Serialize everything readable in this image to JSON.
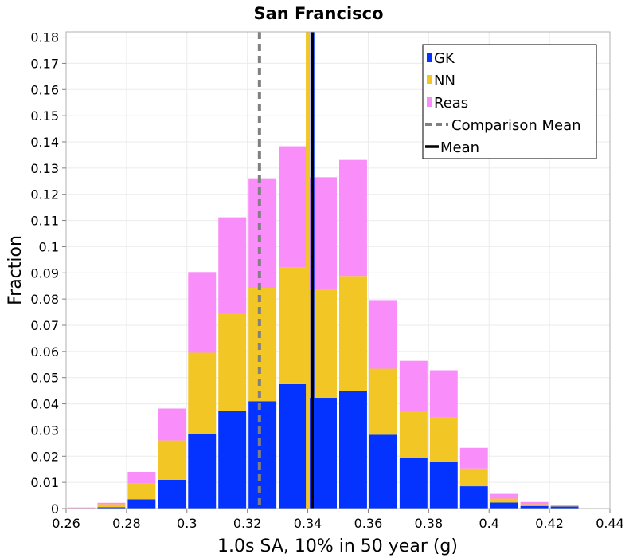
{
  "chart_data": {
    "type": "bar",
    "stacked": true,
    "title": "San Francisco",
    "xlabel": "1.0s SA, 10% in 50 year (g)",
    "ylabel": "Fraction",
    "xlim": [
      0.26,
      0.44
    ],
    "ylim": [
      0,
      0.182
    ],
    "grid": true,
    "legend_position": "top-right",
    "bin_width": 0.01,
    "x_ticks": [
      "0.26",
      "0.28",
      "0.3",
      "0.32",
      "0.34",
      "0.36",
      "0.38",
      "0.4",
      "0.42",
      "0.44"
    ],
    "y_ticks": [
      "0",
      "0.01",
      "0.02",
      "0.03",
      "0.04",
      "0.05",
      "0.06",
      "0.07",
      "0.08",
      "0.09",
      "0.1",
      "0.11",
      "0.12",
      "0.13",
      "0.14",
      "0.15",
      "0.16",
      "0.17",
      "0.18"
    ],
    "bin_starts": [
      0.26,
      0.27,
      0.28,
      0.29,
      0.3,
      0.31,
      0.32,
      0.33,
      0.34,
      0.35,
      0.36,
      0.37,
      0.38,
      0.39,
      0.4,
      0.41,
      0.42
    ],
    "series": [
      {
        "name": "GK",
        "color": "#0433ff",
        "values": [
          0.0001,
          0.0005,
          0.0035,
          0.011,
          0.0285,
          0.0373,
          0.041,
          0.0475,
          0.0423,
          0.045,
          0.0282,
          0.0192,
          0.0178,
          0.0085,
          0.0023,
          0.001,
          0.0008
        ]
      },
      {
        "name": "NN",
        "color": "#f2c624",
        "values": [
          0.0001,
          0.0012,
          0.006,
          0.015,
          0.031,
          0.0371,
          0.0433,
          0.0447,
          0.0417,
          0.0438,
          0.0252,
          0.018,
          0.0172,
          0.0068,
          0.0015,
          0.0007,
          0.0002
        ]
      },
      {
        "name": "Reas",
        "color": "#f98df9",
        "values": [
          0.0002,
          0.0005,
          0.0045,
          0.0122,
          0.0308,
          0.0368,
          0.0418,
          0.0461,
          0.0425,
          0.0443,
          0.0262,
          0.0192,
          0.0178,
          0.0079,
          0.0018,
          0.0008,
          0.0004
        ]
      }
    ],
    "lines": [
      {
        "name": "Comparison Mean",
        "style": "dashed",
        "color": "#808080",
        "x": 0.324
      },
      {
        "name": "Mean",
        "style": "solid",
        "color": "#000000",
        "x": 0.3415
      }
    ],
    "series_markers": [
      {
        "name": "GK",
        "color": "#0433ff",
        "x": 0.3415
      },
      {
        "name": "NN",
        "color": "#f2c624",
        "x": 0.34
      }
    ]
  }
}
